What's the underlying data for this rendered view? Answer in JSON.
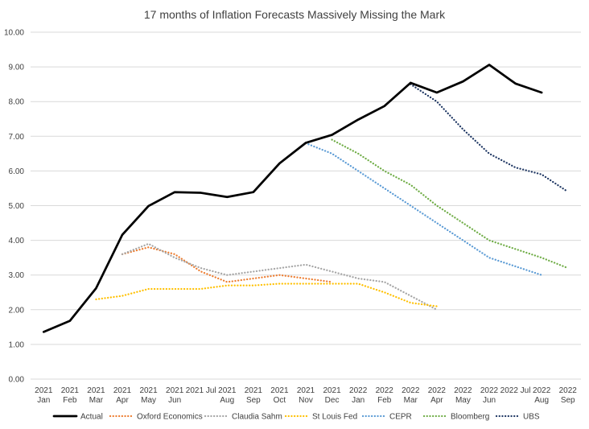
{
  "chart_data": {
    "type": "line",
    "title": "17 months of Inflation Forecasts Massively Missing the Mark",
    "xlabel": "",
    "ylabel": "",
    "ylim": [
      0,
      10
    ],
    "ytick_step": 1,
    "ytick_format": "0.00",
    "grid": "horizontal",
    "legend_position": "bottom",
    "categories": [
      [
        "2021",
        "Jan"
      ],
      [
        "2021",
        "Feb"
      ],
      [
        "2021",
        "Mar"
      ],
      [
        "2021",
        "Apr"
      ],
      [
        "2021",
        "May"
      ],
      [
        "2021",
        "Jun"
      ],
      [
        "2021 Jul",
        ""
      ],
      [
        "2021",
        "Aug"
      ],
      [
        "2021",
        "Sep"
      ],
      [
        "2021",
        "Oct"
      ],
      [
        "2021",
        "Nov"
      ],
      [
        "2021",
        "Dec"
      ],
      [
        "2022",
        "Jan"
      ],
      [
        "2022",
        "Feb"
      ],
      [
        "2022",
        "Mar"
      ],
      [
        "2022",
        "Apr"
      ],
      [
        "2022",
        "May"
      ],
      [
        "2022",
        "Jun"
      ],
      [
        "2022 Jul",
        ""
      ],
      [
        "2022",
        "Aug"
      ],
      [
        "2022",
        "Sep"
      ]
    ],
    "series": [
      {
        "name": "Actual",
        "color": "#000000",
        "dash": "solid",
        "values": [
          1.36,
          1.68,
          2.62,
          4.16,
          4.99,
          5.39,
          5.37,
          5.25,
          5.39,
          6.22,
          6.81,
          7.04,
          7.48,
          7.87,
          8.54,
          8.26,
          8.58,
          9.06,
          8.52,
          8.26,
          null
        ]
      },
      {
        "name": "Oxford Economics",
        "color": "#ED7D31",
        "dash": "dotted",
        "values": [
          null,
          null,
          null,
          3.6,
          3.8,
          3.6,
          3.1,
          2.8,
          2.9,
          3.0,
          2.9,
          2.8,
          null,
          null,
          null,
          null,
          null,
          null,
          null,
          null,
          null
        ]
      },
      {
        "name": "Claudia Sahm",
        "color": "#A5A5A5",
        "dash": "dotted",
        "values": [
          null,
          null,
          null,
          3.6,
          3.9,
          3.5,
          3.2,
          3.0,
          3.1,
          3.2,
          3.3,
          3.1,
          2.9,
          2.8,
          2.4,
          2.0,
          null,
          null,
          null,
          null,
          null
        ]
      },
      {
        "name": "St Louis Fed",
        "color": "#FFC000",
        "dash": "dotted",
        "values": [
          null,
          null,
          2.3,
          2.4,
          2.6,
          2.6,
          2.6,
          2.7,
          2.7,
          2.75,
          2.75,
          2.75,
          2.75,
          2.5,
          2.2,
          2.1,
          null,
          null,
          null,
          null,
          null
        ]
      },
      {
        "name": "CEPR",
        "color": "#5B9BD5",
        "dash": "dotted",
        "values": [
          null,
          null,
          null,
          null,
          null,
          null,
          null,
          null,
          null,
          null,
          6.8,
          6.5,
          6.0,
          5.5,
          5.0,
          4.5,
          4.0,
          3.5,
          3.25,
          3.0,
          null
        ]
      },
      {
        "name": "Bloomberg",
        "color": "#70AD47",
        "dash": "dotted",
        "values": [
          null,
          null,
          null,
          null,
          null,
          null,
          null,
          null,
          null,
          null,
          null,
          6.9,
          6.5,
          6.0,
          5.6,
          5.0,
          4.5,
          4.0,
          3.75,
          3.5,
          3.2
        ]
      },
      {
        "name": "UBS",
        "color": "#203864",
        "dash": "dotted",
        "values": [
          null,
          null,
          null,
          null,
          null,
          null,
          null,
          null,
          null,
          null,
          null,
          null,
          null,
          null,
          8.5,
          8.0,
          7.2,
          6.5,
          6.1,
          5.9,
          5.4
        ]
      }
    ]
  }
}
